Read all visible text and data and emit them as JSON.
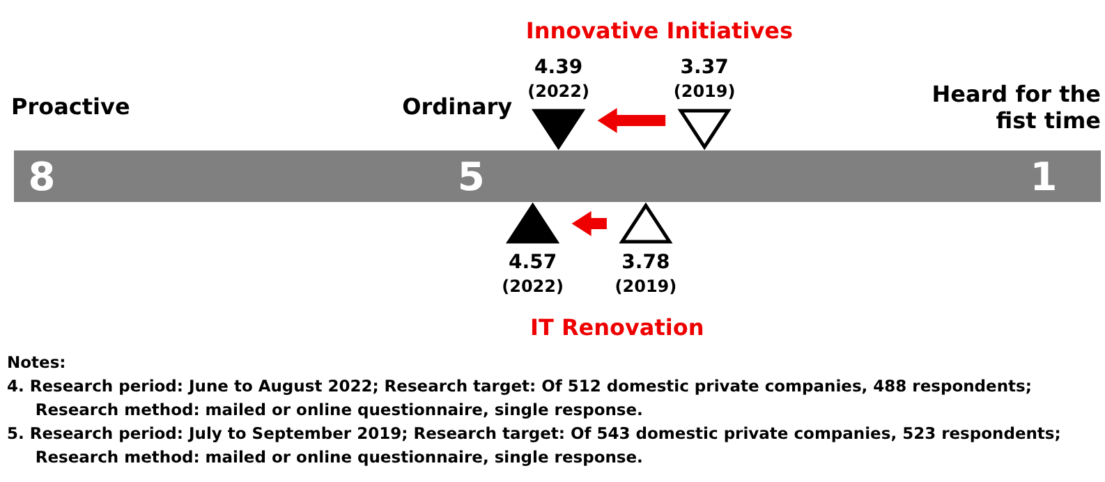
{
  "chart_data": {
    "type": "scatter",
    "orientation": "horizontal",
    "categories": [
      "Innovative Initiatives",
      "IT Renovation"
    ],
    "xlim": [
      8,
      1
    ],
    "xticks": [
      8,
      5,
      1
    ],
    "marker": "triangle",
    "data_labels": true,
    "series": [
      {
        "color": "#000000",
        "values": [
          4.39,
          null
        ]
      },
      {
        "color": "#ffffff",
        "values": [
          3.37,
          null
        ]
      },
      {
        "color": "#000000",
        "values": [
          null,
          4.57
        ]
      },
      {
        "color": "#ffffff",
        "values": [
          null,
          3.78
        ]
      }
    ],
    "annotations": [
      "(2022)",
      "(2019)",
      "(2022)",
      "(2019)",
      "Proactive",
      "Ordinary",
      "Heard for the fist time",
      "Notes:",
      "4. Research period: June to August 2022; Research target: Of 512 domestic private companies, 488 respondents; Research method: mailed or online questionnaire, single response.",
      "5. Research period: July to September 2019; Research target: Of 543 domestic private companies, 523 respondents; Research method: mailed or online questionnaire, single response."
    ]
  }
}
